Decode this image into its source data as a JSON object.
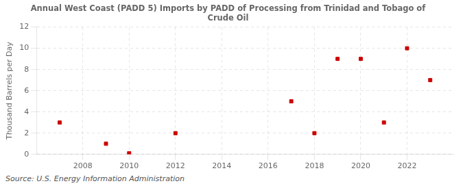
{
  "chart_data": {
    "type": "scatter",
    "title": "Annual West Coast (PADD 5) Imports by PADD of Processing from Trinidad and Tobago of\nCrude Oil",
    "ylabel": "Thousand Barrels per Day",
    "source": "Source: U.S. Energy Information Administration",
    "x": [
      2007,
      2009,
      2010,
      2012,
      2017,
      2018,
      2019,
      2020,
      2021,
      2022,
      2023
    ],
    "values": [
      3,
      1,
      0.1,
      2,
      5,
      2,
      9,
      9,
      3,
      10,
      7
    ],
    "color": "#cc0000",
    "marker": "square",
    "xlim": [
      2006.0,
      2024.0
    ],
    "ylim": [
      0,
      12
    ],
    "xticks": [
      2008,
      2010,
      2012,
      2014,
      2016,
      2018,
      2020,
      2022
    ],
    "yticks": [
      0,
      2,
      4,
      6,
      8,
      10,
      12
    ],
    "grid": true
  }
}
